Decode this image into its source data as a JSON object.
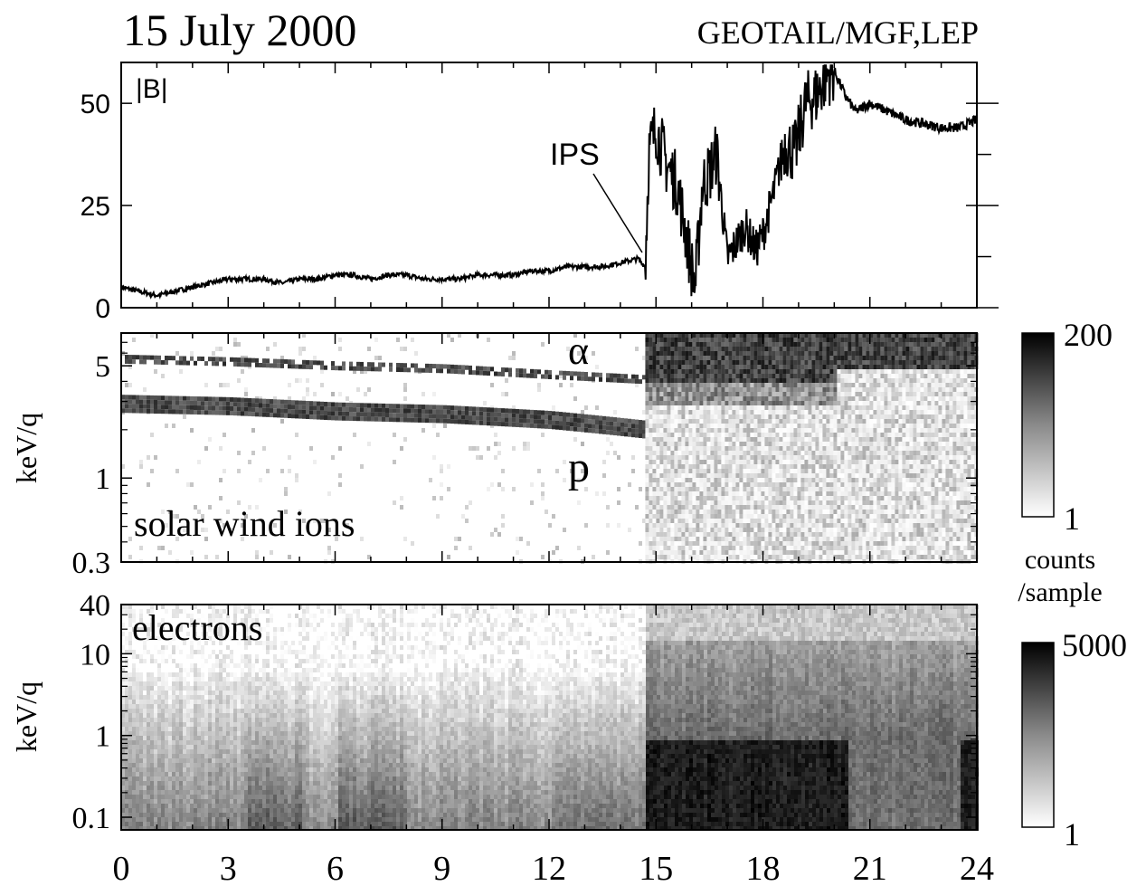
{
  "header": {
    "date": "15 July 2000",
    "instrument": "GEOTAIL/MGF,LEP"
  },
  "chart_data": [
    {
      "type": "line",
      "panel": "top",
      "label": "|B|",
      "annotation": "IPS",
      "xlim": [
        0,
        24
      ],
      "ylim": [
        0,
        60
      ],
      "yticks": [
        "0",
        "25",
        "50"
      ],
      "series": [
        {
          "x": [
            0,
            0.5,
            1,
            1.5,
            2,
            2.5,
            3,
            3.5,
            4,
            4.5,
            5,
            5.5,
            6,
            6.5,
            7,
            7.5,
            8,
            8.5,
            9,
            9.5,
            10,
            10.5,
            11,
            11.5,
            12,
            12.5,
            13,
            13.5,
            14,
            14.5,
            14.7,
            14.8,
            15,
            15.3,
            15.6,
            15.9,
            16.1,
            16.3,
            16.5,
            16.7,
            17,
            17.2,
            17.5,
            17.8,
            18,
            18.3,
            18.6,
            18.9,
            19.2,
            19.5,
            19.8,
            20,
            20.3,
            20.6,
            21,
            21.5,
            22,
            22.5,
            23,
            23.5,
            24
          ],
          "values": [
            5,
            4,
            3,
            4,
            5,
            6,
            7,
            7,
            7,
            6,
            7,
            7,
            8,
            8,
            7,
            8,
            8,
            7,
            7,
            7,
            8,
            8,
            8,
            9,
            9,
            10,
            10,
            10,
            11,
            12,
            10,
            38,
            44,
            35,
            30,
            15,
            5,
            30,
            33,
            38,
            12,
            15,
            20,
            14,
            18,
            28,
            40,
            38,
            50,
            52,
            57,
            58,
            52,
            48,
            50,
            48,
            46,
            45,
            44,
            44,
            46
          ]
        }
      ]
    },
    {
      "type": "heatmap",
      "panel": "middle",
      "label": "solar wind ions",
      "ylabel": "keV/q",
      "yticks": [
        "0.3",
        "1",
        "5"
      ],
      "xlim": [
        0,
        24
      ],
      "ylim": [
        0.3,
        8
      ],
      "annotations": [
        "α",
        "p"
      ],
      "colorbar": {
        "max": "200",
        "min": "1",
        "unit": "counts\n/sample"
      },
      "bands": [
        {
          "name": "alpha",
          "x": [
            0,
            3,
            6,
            9,
            12,
            14.7
          ],
          "values": [
            5.5,
            5.3,
            5.0,
            4.8,
            4.4,
            4.1
          ]
        },
        {
          "name": "proton",
          "x": [
            0,
            3,
            6,
            9,
            12,
            14.7
          ],
          "values": [
            2.9,
            2.8,
            2.6,
            2.5,
            2.3,
            2.0
          ]
        }
      ]
    },
    {
      "type": "heatmap",
      "panel": "bottom",
      "label": "electrons",
      "ylabel": "keV/q",
      "yticks": [
        "0.1",
        "1",
        "10",
        "40"
      ],
      "xlim": [
        0,
        24
      ],
      "ylim": [
        0.07,
        40
      ],
      "colorbar": {
        "max": "5000",
        "min": "1"
      },
      "xticks": [
        "0",
        "3",
        "6",
        "9",
        "12",
        "15",
        "18",
        "21",
        "24"
      ]
    }
  ]
}
